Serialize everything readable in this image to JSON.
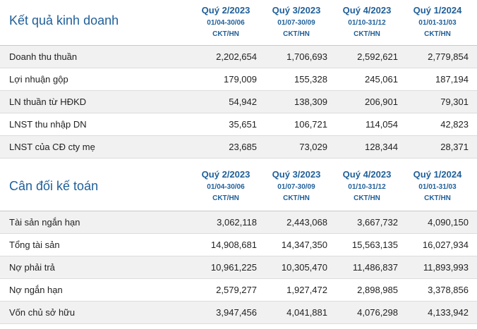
{
  "periods": [
    {
      "quarter": "Quý 2/2023",
      "range": "01/04-30/06",
      "unit": "CKT/HN"
    },
    {
      "quarter": "Quý 3/2023",
      "range": "01/07-30/09",
      "unit": "CKT/HN"
    },
    {
      "quarter": "Quý 4/2023",
      "range": "01/10-31/12",
      "unit": "CKT/HN"
    },
    {
      "quarter": "Quý 1/2024",
      "range": "01/01-31/03",
      "unit": "CKT/HN"
    }
  ],
  "income": {
    "title": "Kết quả kinh doanh",
    "rows": [
      {
        "label": "Doanh thu thuần",
        "values": [
          "2,202,654",
          "1,706,693",
          "2,592,621",
          "2,779,854"
        ]
      },
      {
        "label": "Lợi nhuận gộp",
        "values": [
          "179,009",
          "155,328",
          "245,061",
          "187,194"
        ]
      },
      {
        "label": "LN thuần từ HĐKD",
        "values": [
          "54,942",
          "138,309",
          "206,901",
          "79,301"
        ]
      },
      {
        "label": "LNST thu nhập DN",
        "values": [
          "35,651",
          "106,721",
          "114,054",
          "42,823"
        ]
      },
      {
        "label": "LNST của CĐ cty mẹ",
        "values": [
          "23,685",
          "73,029",
          "128,344",
          "28,371"
        ]
      }
    ]
  },
  "balance": {
    "title": "Cân đối kế toán",
    "rows": [
      {
        "label": "Tài sản ngắn hạn",
        "values": [
          "3,062,118",
          "2,443,068",
          "3,667,732",
          "4,090,150"
        ]
      },
      {
        "label": "Tổng tài sản",
        "values": [
          "14,908,681",
          "14,347,350",
          "15,563,135",
          "16,027,934"
        ]
      },
      {
        "label": "Nợ phải trả",
        "values": [
          "10,961,225",
          "10,305,470",
          "11,486,837",
          "11,893,993"
        ]
      },
      {
        "label": "Nợ ngắn hạn",
        "values": [
          "2,579,277",
          "1,927,472",
          "2,898,985",
          "3,378,856"
        ]
      },
      {
        "label": "Vốn chủ sở hữu",
        "values": [
          "3,947,456",
          "4,041,881",
          "4,076,298",
          "4,133,942"
        ]
      }
    ]
  }
}
